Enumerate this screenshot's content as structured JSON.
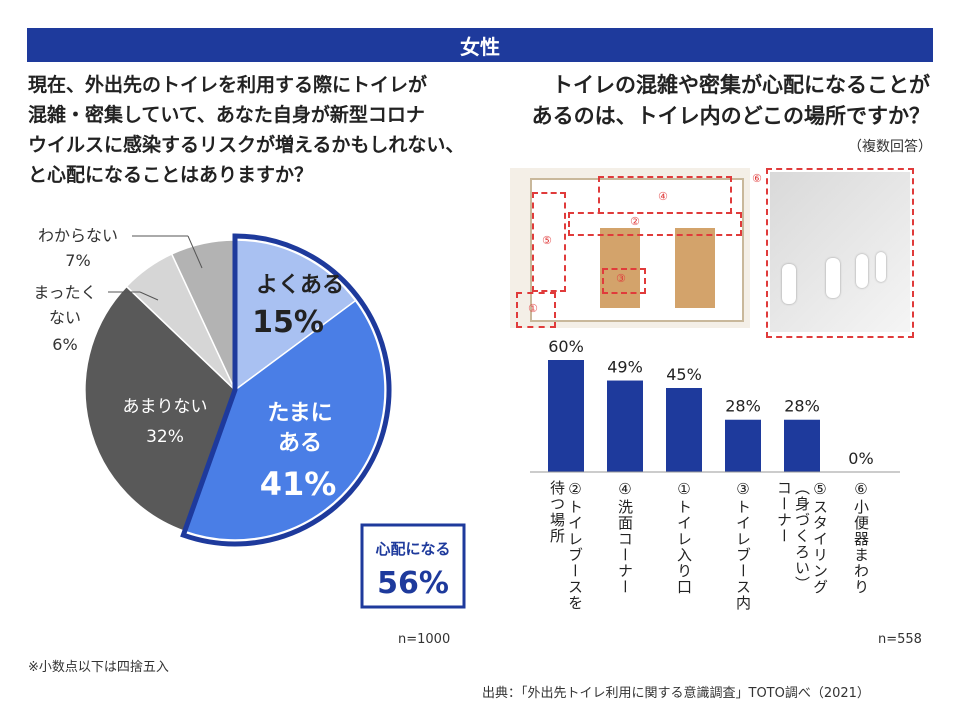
{
  "banner": "女性",
  "question_left": [
    "現在、外出先のトイレを利用する際にトイレが",
    "混雑・密集していて、あなた自身が新型コロナ",
    "ウイルスに感染するリスクが増えるかもしれない、",
    "と心配になることはありますか？"
  ],
  "question_right": [
    "トイレの混雑や密集が心配になることが",
    "あるのは、トイレ内のどこの場所ですか？"
  ],
  "multi_answer_note": "（複数回答）",
  "colors": {
    "banner": "#1e3a9c",
    "bar": "#1e3a9c",
    "pie_yoku": "#a9c1f2",
    "pie_tama": "#4a7ee6",
    "pie_amari": "#595959",
    "pie_mattaku": "#d6d6d6",
    "pie_wakara": "#b3b3b3",
    "highlight": "#1e3a9c"
  },
  "summary_badge": {
    "label": "心配になる",
    "value": "56%"
  },
  "n_left": "n=1000",
  "n_right": "n=558",
  "footnote": "※小数点以下は四捨五入",
  "source": "出典：「外出先トイレ利用に関する意識調査」TOTO調べ（2021）",
  "floor_markers": [
    "①",
    "②",
    "③",
    "④",
    "⑤",
    "⑥"
  ],
  "chart_data": [
    {
      "type": "pie",
      "slices": [
        {
          "label": "よくある",
          "value": 15
        },
        {
          "label": "たまにある",
          "value": 41
        },
        {
          "label": "あまりない",
          "value": 32
        },
        {
          "label": "まったくない",
          "value": 6
        },
        {
          "label": "わからない",
          "value": 7
        }
      ],
      "slice_text": {
        "yoku": {
          "name": "よくある",
          "value": "15%"
        },
        "tama1": "たまに",
        "tama2": "ある",
        "tama_value": "41%",
        "amari": {
          "name": "あまりない",
          "value": "32%"
        },
        "mattaku1": "まったく",
        "mattaku2": "ない",
        "mattaku_value": "6%",
        "wakara": {
          "name": "わからない",
          "value": "7%"
        }
      }
    },
    {
      "type": "bar",
      "categories": [
        "②トイレブースを待つ場所",
        "④洗面コーナー",
        "①トイレ入り口",
        "③トイレブース内",
        "⑤スタイリング（身づくろい）コーナー",
        "⑥小便器まわり"
      ],
      "category_lines": [
        [
          "②トイレブースを",
          "待つ場所"
        ],
        [
          "④洗面コーナー"
        ],
        [
          "①トイレ入り口"
        ],
        [
          "③トイレブース内"
        ],
        [
          "⑤スタイリング",
          "（身づくろい）",
          "コーナー"
        ],
        [
          "⑥小便器まわり"
        ]
      ],
      "values": [
        60,
        49,
        45,
        28,
        28,
        0
      ],
      "labels": [
        "60%",
        "49%",
        "45%",
        "28%",
        "28%",
        "0%"
      ],
      "ylim": [
        0,
        60
      ]
    }
  ]
}
